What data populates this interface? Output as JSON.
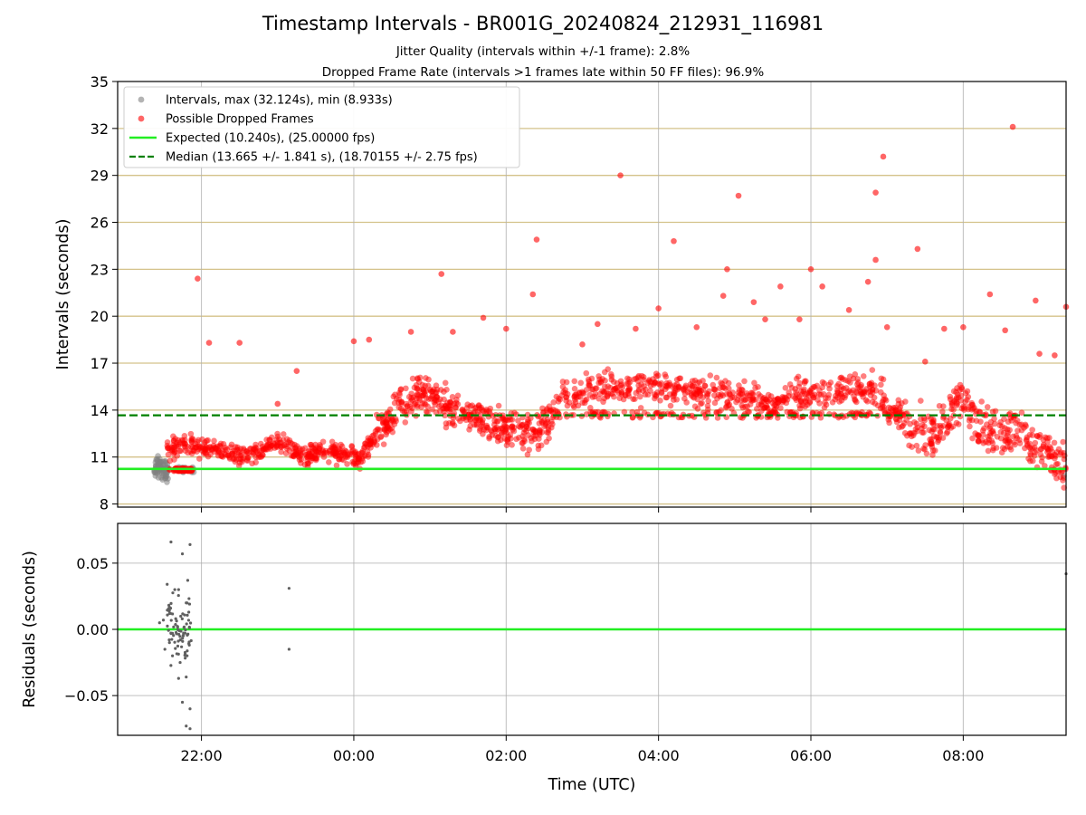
{
  "chart_data": [
    {
      "type": "scatter",
      "title": "Timestamp Intervals - BR001G_20240824_212931_116981",
      "subtitle_lines": [
        "Jitter Quality (intervals within +/-1 frame): 2.8%",
        "Dropped Frame Rate (intervals >1 frames late within 50 FF files): 96.9%"
      ],
      "xlabel": "Time (UTC)",
      "ylabel": "Intervals (seconds)",
      "x_tick_labels": [
        "22:00",
        "00:00",
        "02:00",
        "04:00",
        "06:00",
        "08:00"
      ],
      "x_range_hours": [
        -1.1,
        11.35
      ],
      "ylim": [
        7.8,
        35
      ],
      "y_ticks": [
        8,
        11,
        14,
        17,
        20,
        23,
        26,
        29,
        32,
        35
      ],
      "horizontal_guides": [
        8,
        11,
        14,
        17,
        20,
        23,
        26,
        29,
        32
      ],
      "guide_color": "#d4c28a",
      "vertical_grid": true,
      "legend_position": "top-left",
      "expected_interval": 10.24,
      "median_interval": 13.665,
      "series": [
        {
          "name": "Intervals, max (32.124s), min (8.933s)",
          "color": "#808080",
          "marker": "circle"
        },
        {
          "name": "Possible Dropped Frames",
          "color": "#ff0000",
          "marker": "circle"
        },
        {
          "name": "Expected (10.240s), (25.00000 fps)",
          "color": "#22ee22",
          "line": "solid",
          "value": 10.24
        },
        {
          "name": "Median (13.665 +/- 1.841 s), (18.70155 +/- 2.75 fps)",
          "color": "#008000",
          "line": "dashed",
          "value": 13.665
        }
      ],
      "dropped_trend": [
        [
          -0.45,
          11.5
        ],
        [
          -0.2,
          11.8
        ],
        [
          0.15,
          11.6
        ],
        [
          0.4,
          11.1
        ],
        [
          0.8,
          11.4
        ],
        [
          1.0,
          12.0
        ],
        [
          1.2,
          11.5
        ],
        [
          1.35,
          10.8
        ],
        [
          1.6,
          11.6
        ],
        [
          1.9,
          11.2
        ],
        [
          2.1,
          11.0
        ],
        [
          2.3,
          12.5
        ],
        [
          2.6,
          14.3
        ],
        [
          2.9,
          15.0
        ],
        [
          3.1,
          14.7
        ],
        [
          3.3,
          14.0
        ],
        [
          3.6,
          13.6
        ],
        [
          3.9,
          13.0
        ],
        [
          4.2,
          12.6
        ],
        [
          4.4,
          12.5
        ],
        [
          4.55,
          13.3
        ],
        [
          4.8,
          15.1
        ],
        [
          5.2,
          15.3
        ],
        [
          5.6,
          15.5
        ],
        [
          6.0,
          15.4
        ],
        [
          6.4,
          15.2
        ],
        [
          6.8,
          15.0
        ],
        [
          7.2,
          14.8
        ],
        [
          7.6,
          14.6
        ],
        [
          8.0,
          15.0
        ],
        [
          8.4,
          15.2
        ],
        [
          8.8,
          15.3
        ],
        [
          9.1,
          14.0
        ],
        [
          9.3,
          13.2
        ],
        [
          9.6,
          12.8
        ],
        [
          9.8,
          13.8
        ],
        [
          10.0,
          15.0
        ],
        [
          10.2,
          13.3
        ],
        [
          10.5,
          12.7
        ],
        [
          10.7,
          13.4
        ],
        [
          10.9,
          12.0
        ],
        [
          11.1,
          11.8
        ],
        [
          11.3,
          10.5
        ]
      ],
      "dropped_outliers": [
        [
          -0.05,
          22.4
        ],
        [
          0.1,
          18.3
        ],
        [
          0.5,
          18.3
        ],
        [
          1.25,
          16.5
        ],
        [
          1.0,
          14.4
        ],
        [
          2.0,
          18.4
        ],
        [
          2.2,
          18.5
        ],
        [
          2.75,
          19.0
        ],
        [
          3.15,
          22.7
        ],
        [
          3.3,
          19.0
        ],
        [
          3.7,
          19.9
        ],
        [
          4.0,
          19.2
        ],
        [
          4.4,
          24.9
        ],
        [
          4.35,
          21.4
        ],
        [
          5.0,
          18.2
        ],
        [
          5.5,
          29.0
        ],
        [
          5.7,
          19.2
        ],
        [
          6.0,
          20.5
        ],
        [
          6.2,
          24.8
        ],
        [
          6.5,
          19.3
        ],
        [
          6.85,
          21.3
        ],
        [
          6.9,
          23.0
        ],
        [
          7.05,
          27.7
        ],
        [
          7.25,
          20.9
        ],
        [
          7.4,
          19.8
        ],
        [
          7.6,
          21.9
        ],
        [
          7.85,
          19.8
        ],
        [
          8.0,
          23.0
        ],
        [
          8.15,
          21.9
        ],
        [
          8.5,
          20.4
        ],
        [
          8.75,
          22.2
        ],
        [
          8.85,
          27.9
        ],
        [
          8.95,
          30.2
        ],
        [
          8.85,
          23.6
        ],
        [
          9.0,
          19.3
        ],
        [
          9.4,
          24.3
        ],
        [
          9.75,
          19.2
        ],
        [
          10.0,
          19.3
        ],
        [
          10.35,
          21.4
        ],
        [
          10.55,
          19.1
        ],
        [
          10.65,
          32.1
        ],
        [
          10.95,
          21.0
        ],
        [
          11.2,
          17.5
        ],
        [
          11.35,
          20.6
        ],
        [
          11.0,
          17.6
        ],
        [
          9.5,
          17.1
        ],
        [
          5.2,
          19.5
        ]
      ],
      "residuals_panel": {
        "ylabel": "Residuals (seconds)",
        "y_ticks": [
          0.05,
          0.0,
          -0.05
        ],
        "y_tick_labels": [
          "0.05",
          "0.00",
          "−0.05"
        ],
        "ylim": [
          -0.08,
          0.08
        ],
        "zero_line_color": "#22ee22",
        "points": [
          [
            -0.4,
            0.066
          ],
          [
            -0.25,
            0.057
          ],
          [
            -0.15,
            0.064
          ],
          [
            -0.18,
            0.037
          ],
          [
            -0.45,
            0.034
          ],
          [
            -0.3,
            0.03
          ],
          [
            -0.35,
            0.03
          ],
          [
            -0.2,
            0.02
          ],
          [
            -0.5,
            0.007
          ],
          [
            -0.55,
            0.005
          ],
          [
            -0.42,
            -0.01
          ],
          [
            -0.38,
            -0.02
          ],
          [
            -0.28,
            -0.025
          ],
          [
            -0.48,
            -0.015
          ],
          [
            -0.3,
            -0.037
          ],
          [
            -0.2,
            -0.036
          ],
          [
            -0.25,
            -0.055
          ],
          [
            -0.15,
            -0.06
          ],
          [
            -0.2,
            -0.073
          ],
          [
            -0.15,
            -0.075
          ],
          [
            1.15,
            0.031
          ],
          [
            1.15,
            -0.015
          ],
          [
            11.35,
            0.042
          ]
        ]
      }
    }
  ]
}
